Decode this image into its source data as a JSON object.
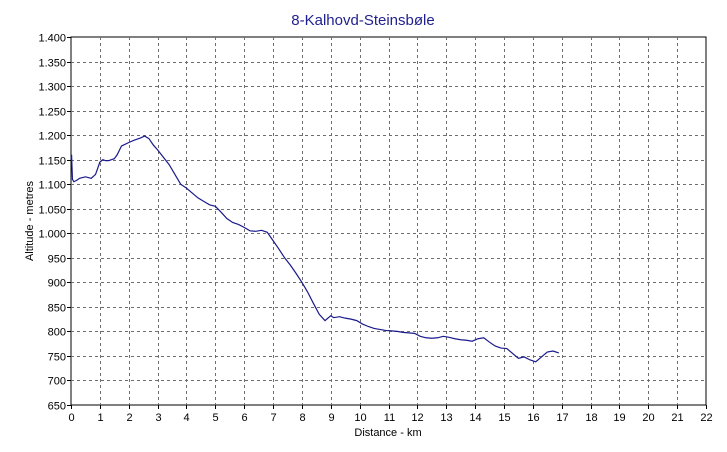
{
  "chart_data": {
    "type": "line",
    "title": "8-Kalhovd-Steinsbøle",
    "xlabel": "Distance - km",
    "ylabel": "Altitude - metres",
    "xlim": [
      0,
      22
    ],
    "ylim": [
      650,
      1400
    ],
    "x_ticks": [
      0,
      1,
      2,
      3,
      4,
      5,
      6,
      7,
      8,
      9,
      10,
      11,
      12,
      13,
      14,
      15,
      16,
      17,
      18,
      19,
      20,
      21,
      22
    ],
    "x_tick_labels": [
      "0",
      "1",
      "2",
      "3",
      "4",
      "5",
      "6",
      "7",
      "8",
      "9",
      "10",
      "11",
      "12",
      "13",
      "14",
      "15",
      "16",
      "17",
      "18",
      "19",
      "20",
      "21",
      "22"
    ],
    "y_ticks": [
      650,
      700,
      750,
      800,
      850,
      900,
      950,
      1000,
      1050,
      1100,
      1150,
      1200,
      1250,
      1300,
      1350,
      1400
    ],
    "y_tick_labels": [
      "650",
      "700",
      "750",
      "800",
      "850",
      "900",
      "950",
      "1.000",
      "1.050",
      "1.100",
      "1.150",
      "1.200",
      "1.250",
      "1.300",
      "1.350",
      "1.400"
    ],
    "grid": true,
    "line_color": "#1a1a8c",
    "series": [
      {
        "x": [
          0,
          0.02,
          0.05,
          0.1,
          0.2,
          0.3,
          0.5,
          0.7,
          0.85,
          1.0,
          1.1,
          1.2,
          1.3,
          1.5,
          1.6,
          1.75,
          1.9,
          2.0,
          2.2,
          2.4,
          2.55,
          2.7,
          2.85,
          3.0,
          3.2,
          3.4,
          3.6,
          3.8,
          4.0,
          4.2,
          4.4,
          4.6,
          4.8,
          5.0,
          5.2,
          5.4,
          5.6,
          5.8,
          6.0,
          6.2,
          6.4,
          6.6,
          6.8,
          7.0,
          7.2,
          7.4,
          7.6,
          7.8,
          8.0,
          8.2,
          8.4,
          8.6,
          8.8,
          9.0,
          9.1,
          9.3,
          9.5,
          9.7,
          9.9,
          10.1,
          10.3,
          10.5,
          10.7,
          10.9,
          11.1,
          11.3,
          11.5,
          11.7,
          11.9,
          12.1,
          12.3,
          12.5,
          12.7,
          12.9,
          13.1,
          13.3,
          13.5,
          13.7,
          13.9,
          14.1,
          14.3,
          14.5,
          14.7,
          14.9,
          15.1,
          15.3,
          15.5,
          15.7,
          15.9,
          16.1,
          16.3,
          16.5,
          16.7,
          16.9
        ],
        "y": [
          1150,
          1160,
          1110,
          1105,
          1108,
          1112,
          1115,
          1112,
          1120,
          1145,
          1150,
          1148,
          1148,
          1152,
          1160,
          1178,
          1182,
          1185,
          1190,
          1194,
          1198,
          1193,
          1180,
          1170,
          1155,
          1140,
          1120,
          1100,
          1092,
          1082,
          1072,
          1065,
          1058,
          1055,
          1043,
          1030,
          1022,
          1018,
          1012,
          1005,
          1004,
          1006,
          1002,
          985,
          968,
          950,
          935,
          918,
          900,
          880,
          857,
          835,
          822,
          832,
          828,
          830,
          827,
          825,
          822,
          815,
          810,
          806,
          804,
          802,
          801,
          800,
          798,
          797,
          796,
          790,
          787,
          786,
          787,
          790,
          788,
          785,
          783,
          782,
          780,
          785,
          787,
          778,
          770,
          766,
          765,
          755,
          745,
          748,
          742,
          738,
          748,
          758,
          760,
          756
        ]
      }
    ]
  }
}
